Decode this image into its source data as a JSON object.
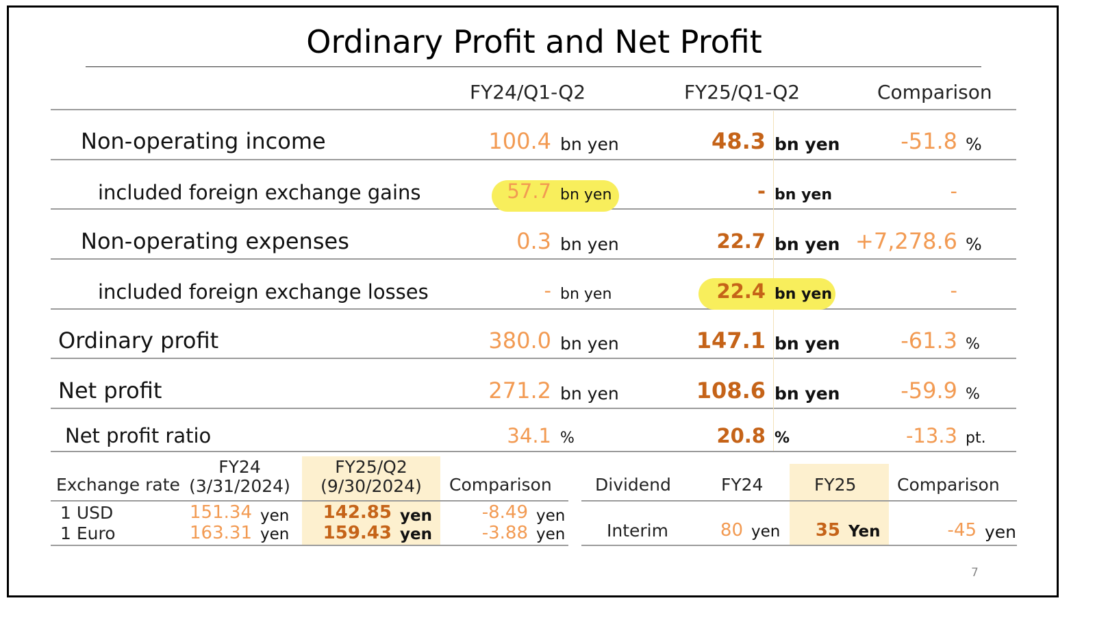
{
  "title": "Ordinary Profit and Net Profit",
  "header": {
    "col1": "FY24/Q1-Q2",
    "col2": "FY25/Q1-Q2",
    "col3": "Comparison"
  },
  "rows": [
    {
      "label": "Non-operating income",
      "fy24": "100.4",
      "fy24_unit": "bn yen",
      "fy25": "48.3",
      "fy25_unit": "bn yen",
      "cmp": "-51.8",
      "cmp_unit": "%"
    },
    {
      "label": "included foreign exchange gains",
      "fy24": "57.7",
      "fy24_unit": "bn yen",
      "fy25": "-",
      "fy25_unit": "bn yen",
      "cmp": "-",
      "cmp_unit": ""
    },
    {
      "label": "Non-operating expenses",
      "fy24": "0.3",
      "fy24_unit": "bn yen",
      "fy25": "22.7",
      "fy25_unit": "bn yen",
      "cmp": "+7,278.6",
      "cmp_unit": "%"
    },
    {
      "label": "included foreign exchange losses",
      "fy24": "-",
      "fy24_unit": "bn yen",
      "fy25": "22.4",
      "fy25_unit": "bn yen",
      "cmp": "-",
      "cmp_unit": ""
    },
    {
      "label": "Ordinary profit",
      "fy24": "380.0",
      "fy24_unit": "bn yen",
      "fy25": "147.1",
      "fy25_unit": "bn yen",
      "cmp": "-61.3",
      "cmp_unit": "%"
    },
    {
      "label": "Net profit",
      "fy24": "271.2",
      "fy24_unit": "bn yen",
      "fy25": "108.6",
      "fy25_unit": "bn yen",
      "cmp": "-59.9",
      "cmp_unit": "%"
    },
    {
      "label": "Net profit ratio",
      "fy24": "34.1",
      "fy24_unit": "%",
      "fy25": "20.8",
      "fy25_unit": "%",
      "cmp": "-13.3",
      "cmp_unit": "pt."
    }
  ],
  "exchange": {
    "label": "Exchange rate",
    "fy24_line1": "FY24",
    "fy24_line2": "(3/31/2024)",
    "fy25_line1": "FY25/Q2",
    "fy25_line2": "(9/30/2024)",
    "comparison": "Comparison",
    "rows": [
      {
        "label": "1 USD",
        "fy24": "151.34",
        "fy25": "142.85",
        "cmp": "-8.49",
        "unit": "yen"
      },
      {
        "label": "1 Euro",
        "fy24": "163.31",
        "fy25": "159.43",
        "cmp": "-3.88",
        "unit": "yen"
      }
    ]
  },
  "dividend": {
    "label": "Dividend",
    "fy24": "FY24",
    "fy25": "FY25",
    "comparison": "Comparison",
    "row": {
      "label": "Interim",
      "fy24": "80",
      "fy24_unit": "yen",
      "fy25": "35",
      "fy25_unit": "Yen",
      "cmp": "-45",
      "cmp_unit": "yen"
    }
  },
  "page_number": "7",
  "colors": {
    "fy24_value": "#f29a52",
    "fy25_value": "#c56318",
    "highlight": "#f8ee5c",
    "shade": "#fdf0cf"
  }
}
